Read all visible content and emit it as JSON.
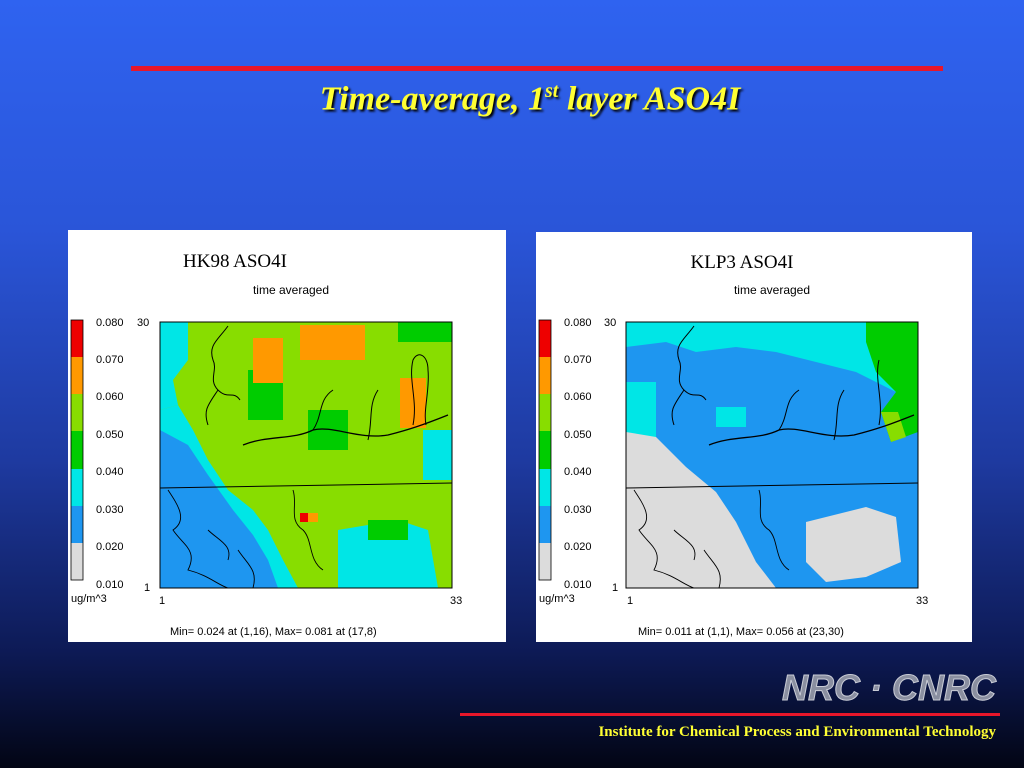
{
  "slide": {
    "title_main": "Time-average, 1",
    "title_sup": "st",
    "title_rest": " layer  ASO4I",
    "footer": "Institute for Chemical Process and Environmental Technology",
    "logo_text": "NRC · CNRC"
  },
  "colors": {
    "title": "#ffff33",
    "rule": "#e8162a",
    "legend": [
      "#dcdcdc",
      "#1e96f0",
      "#00e6e6",
      "#00cc00",
      "#88dd00",
      "#ff9900",
      "#ee0000"
    ]
  },
  "plots": [
    {
      "title": "HK98  ASO4I",
      "subtitle": "time averaged",
      "legend_values": [
        "0.080",
        "0.070",
        "0.060",
        "0.050",
        "0.040",
        "0.030",
        "0.020",
        "0.010"
      ],
      "unit": "ug/m^3",
      "x_start": "1",
      "x_end": "33",
      "y_start": "1",
      "y_end": "30",
      "stats": "Min=   0.024 at (1,16), Max=   0.081 at (17,8)"
    },
    {
      "title": "KLP3  ASO4I",
      "subtitle": "time averaged",
      "legend_values": [
        "0.080",
        "0.070",
        "0.060",
        "0.050",
        "0.040",
        "0.030",
        "0.020",
        "0.010"
      ],
      "unit": "ug/m^3",
      "x_start": "1",
      "x_end": "33",
      "y_start": "1",
      "y_end": "30",
      "stats": "Min=   0.011 at (1,1), Max=   0.056 at (23,30)"
    }
  ]
}
